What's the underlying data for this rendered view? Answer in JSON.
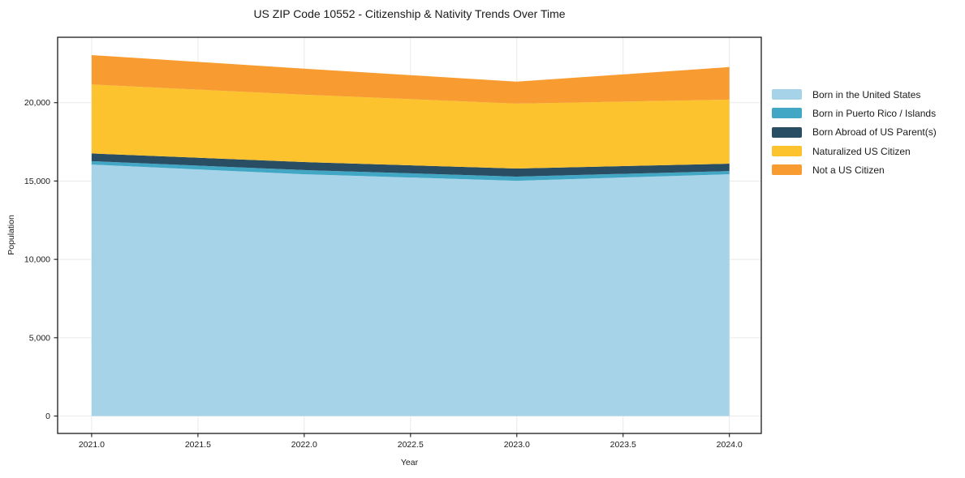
{
  "chart_data": {
    "type": "area",
    "stacked": true,
    "title": "US ZIP Code 10552 - Citizenship & Nativity Trends Over Time",
    "xlabel": "Year",
    "ylabel": "Population",
    "x": [
      2021,
      2022,
      2023,
      2024
    ],
    "series": [
      {
        "name": "Born in the United States",
        "key": "born-in-the-united-states",
        "color": "#a6d3e8",
        "values": [
          16050,
          15430,
          15020,
          15430
        ]
      },
      {
        "name": "Born in Puerto Rico / Islands",
        "key": "born-in-puerto-rico-islands",
        "color": "#42a7c5",
        "values": [
          220,
          270,
          260,
          210
        ]
      },
      {
        "name": "Born Abroad of US Parent(s)",
        "key": "born-abroad-of-us-parents",
        "color": "#294d63",
        "values": [
          490,
          510,
          520,
          470
        ]
      },
      {
        "name": "Naturalized US Citizen",
        "key": "naturalized-us-citizen",
        "color": "#fcc32e",
        "values": [
          4400,
          4300,
          4140,
          4090
        ]
      },
      {
        "name": "Not a US Citizen",
        "key": "not-a-us-citizen",
        "color": "#f89b30",
        "values": [
          1880,
          1660,
          1400,
          2070
        ]
      }
    ],
    "totals": [
      23040,
      22170,
      21340,
      22270
    ],
    "xlim": [
      2020.84,
      2024.15
    ],
    "ylim": [
      -1110,
      24175
    ],
    "xticks": {
      "values": [
        2021,
        2021.5,
        2022,
        2022.5,
        2023,
        2023.5,
        2024
      ],
      "labels": [
        "2021.0",
        "2021.5",
        "2022.0",
        "2022.5",
        "2023.0",
        "2023.5",
        "2024.0"
      ]
    },
    "yticks": {
      "values": [
        0,
        5000,
        10000,
        15000,
        20000
      ],
      "labels": [
        "0",
        "5,000",
        "10,000",
        "15,000",
        "20,000"
      ]
    },
    "grid": true,
    "legend_position": "right-outside"
  },
  "colors": {
    "background": "#ffffff",
    "spine": "#1a1a1a",
    "grid": "#e9e9e9",
    "tick": "#1a1a1a",
    "text": "#1a1a1a"
  }
}
